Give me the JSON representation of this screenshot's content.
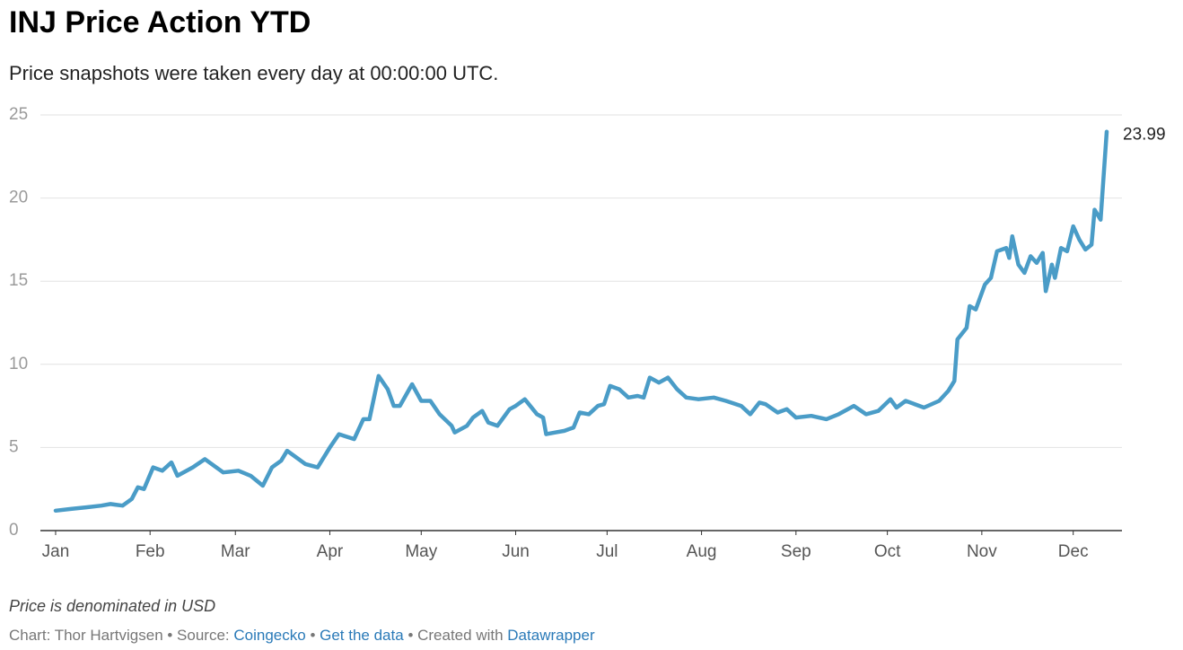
{
  "chart_data": {
    "type": "line",
    "title": "INJ Price Action YTD",
    "subtitle": "Price snapshots were taken every day at 00:00:00 UTC.",
    "note": "Price is denominated in USD",
    "credit": {
      "byline": "Chart: Thor Hartvigsen • Source:",
      "source": "Coingecko",
      "separator": "•",
      "get_data": "Get the data",
      "created": "• Created with",
      "tool": "Datawrapper"
    },
    "color": "#4a9cc7",
    "grid": true,
    "xlim": [
      -5,
      350
    ],
    "ylim": [
      0,
      25
    ],
    "yticks": [
      0,
      5,
      10,
      15,
      20,
      25
    ],
    "xticks": [
      {
        "value": 0,
        "label": "Jan"
      },
      {
        "value": 31,
        "label": "Feb"
      },
      {
        "value": 59,
        "label": "Mar"
      },
      {
        "value": 90,
        "label": "Apr"
      },
      {
        "value": 120,
        "label": "May"
      },
      {
        "value": 151,
        "label": "Jun"
      },
      {
        "value": 181,
        "label": "Jul"
      },
      {
        "value": 212,
        "label": "Aug"
      },
      {
        "value": 243,
        "label": "Sep"
      },
      {
        "value": 273,
        "label": "Oct"
      },
      {
        "value": 304,
        "label": "Nov"
      },
      {
        "value": 334,
        "label": "Dec"
      }
    ],
    "x": [
      0,
      5,
      10,
      15,
      18,
      22,
      25,
      27,
      29,
      32,
      35,
      38,
      40,
      45,
      49,
      55,
      60,
      64,
      68,
      71,
      74,
      76,
      82,
      86,
      90,
      93,
      98,
      101,
      103,
      106,
      109,
      111,
      113,
      117,
      120,
      123,
      126,
      130,
      131,
      135,
      137,
      140,
      142,
      145,
      149,
      151,
      154,
      158,
      160,
      161,
      164,
      167,
      170,
      172,
      175,
      178,
      180,
      182,
      185,
      188,
      191,
      193,
      195,
      198,
      201,
      204,
      207,
      211,
      216,
      220,
      225,
      228,
      231,
      233,
      237,
      240,
      243,
      248,
      253,
      257,
      262,
      266,
      270,
      274,
      276,
      279,
      282,
      285,
      290,
      293,
      295,
      296,
      299,
      300,
      302,
      305,
      307,
      309,
      312,
      313,
      314,
      316,
      318,
      320,
      322,
      324,
      325,
      327,
      328,
      330,
      332,
      334,
      336,
      338,
      340,
      341,
      343,
      345
    ],
    "values": [
      1.2,
      1.3,
      1.4,
      1.5,
      1.6,
      1.5,
      1.9,
      2.6,
      2.5,
      3.8,
      3.6,
      4.1,
      3.3,
      3.8,
      4.3,
      3.5,
      3.6,
      3.3,
      2.7,
      3.8,
      4.2,
      4.8,
      4.0,
      3.8,
      5.0,
      5.8,
      5.5,
      6.7,
      6.7,
      9.3,
      8.5,
      7.5,
      7.5,
      8.8,
      7.8,
      7.8,
      7.0,
      6.3,
      5.9,
      6.3,
      6.8,
      7.2,
      6.5,
      6.3,
      7.3,
      7.5,
      7.9,
      7.0,
      6.8,
      5.8,
      5.9,
      6.0,
      6.2,
      7.1,
      7.0,
      7.5,
      7.6,
      8.7,
      8.5,
      8.0,
      8.1,
      8.0,
      9.2,
      8.9,
      9.2,
      8.5,
      8.0,
      7.9,
      8.0,
      7.8,
      7.5,
      7.0,
      7.7,
      7.6,
      7.1,
      7.3,
      6.8,
      6.9,
      6.7,
      7.0,
      7.5,
      7.0,
      7.2,
      7.9,
      7.4,
      7.8,
      7.6,
      7.4,
      7.8,
      8.4,
      9.0,
      11.5,
      12.2,
      13.5,
      13.3,
      14.8,
      15.2,
      16.8,
      17.0,
      16.4,
      17.7,
      16.0,
      15.5,
      16.5,
      16.1,
      16.7,
      14.4,
      16.0,
      15.2,
      17.0,
      16.8,
      18.3,
      17.5,
      16.9,
      17.2,
      19.3,
      18.7,
      23.99
    ]
  }
}
